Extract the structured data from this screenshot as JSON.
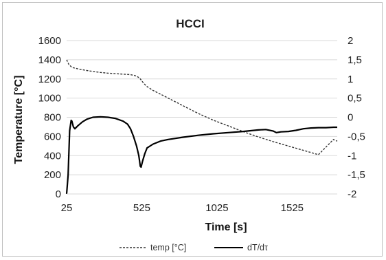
{
  "chart_data": {
    "type": "line",
    "title": "HCCI",
    "xlabel": "Time [s]",
    "ylabel": "Temperature [°C]",
    "y2label": "",
    "xlim": [
      25,
      1825
    ],
    "ylim": [
      0,
      1600
    ],
    "y2lim": [
      -2,
      2
    ],
    "x_ticks": [
      25,
      525,
      1025,
      1525
    ],
    "y_ticks": [
      0,
      200,
      400,
      600,
      800,
      1000,
      1200,
      1400,
      1600
    ],
    "y2_ticks": [
      "-2",
      "-1,5",
      "-1",
      "-0,5",
      "0",
      "0,5",
      "1",
      "1,5",
      "2"
    ],
    "y2_tick_values": [
      -2,
      -1.5,
      -1,
      -0.5,
      0,
      0.5,
      1,
      1.5,
      2
    ],
    "grid": "horizontal",
    "legend_position": "bottom",
    "series": [
      {
        "name": "temp [°C]",
        "axis": "left",
        "style": "dashed",
        "color": "#333333",
        "x": [
          25,
          40,
          60,
          100,
          150,
          200,
          250,
          300,
          350,
          400,
          450,
          480,
          500,
          515,
          525,
          540,
          560,
          600,
          650,
          700,
          800,
          900,
          1000,
          1100,
          1200,
          1300,
          1400,
          1500,
          1600,
          1700,
          1800,
          1825
        ],
        "y": [
          1400,
          1350,
          1320,
          1305,
          1290,
          1278,
          1268,
          1260,
          1255,
          1250,
          1245,
          1235,
          1220,
          1200,
          1180,
          1150,
          1120,
          1080,
          1040,
          1000,
          920,
          840,
          770,
          710,
          650,
          595,
          545,
          500,
          455,
          410,
          568,
          550
        ]
      },
      {
        "name": "dT/dτ",
        "axis": "right",
        "style": "solid",
        "color": "#000000",
        "x": [
          25,
          35,
          45,
          55,
          60,
          70,
          80,
          100,
          130,
          160,
          200,
          250,
          300,
          350,
          400,
          430,
          450,
          470,
          490,
          505,
          515,
          520,
          530,
          545,
          560,
          600,
          650,
          700,
          800,
          900,
          1000,
          1100,
          1200,
          1300,
          1350,
          1400,
          1420,
          1450,
          1500,
          1550,
          1600,
          1650,
          1700,
          1750,
          1800,
          1825
        ],
        "y": [
          -2,
          -1.5,
          -0.35,
          -0.08,
          -0.1,
          -0.25,
          -0.3,
          -0.22,
          -0.12,
          -0.05,
          0,
          0.01,
          0,
          -0.03,
          -0.1,
          -0.18,
          -0.3,
          -0.5,
          -0.75,
          -1.0,
          -1.28,
          -1.3,
          -1.15,
          -0.95,
          -0.8,
          -0.7,
          -0.62,
          -0.58,
          -0.52,
          -0.47,
          -0.43,
          -0.4,
          -0.37,
          -0.33,
          -0.32,
          -0.36,
          -0.4,
          -0.38,
          -0.37,
          -0.34,
          -0.3,
          -0.28,
          -0.27,
          -0.27,
          -0.26,
          -0.26
        ]
      }
    ]
  }
}
